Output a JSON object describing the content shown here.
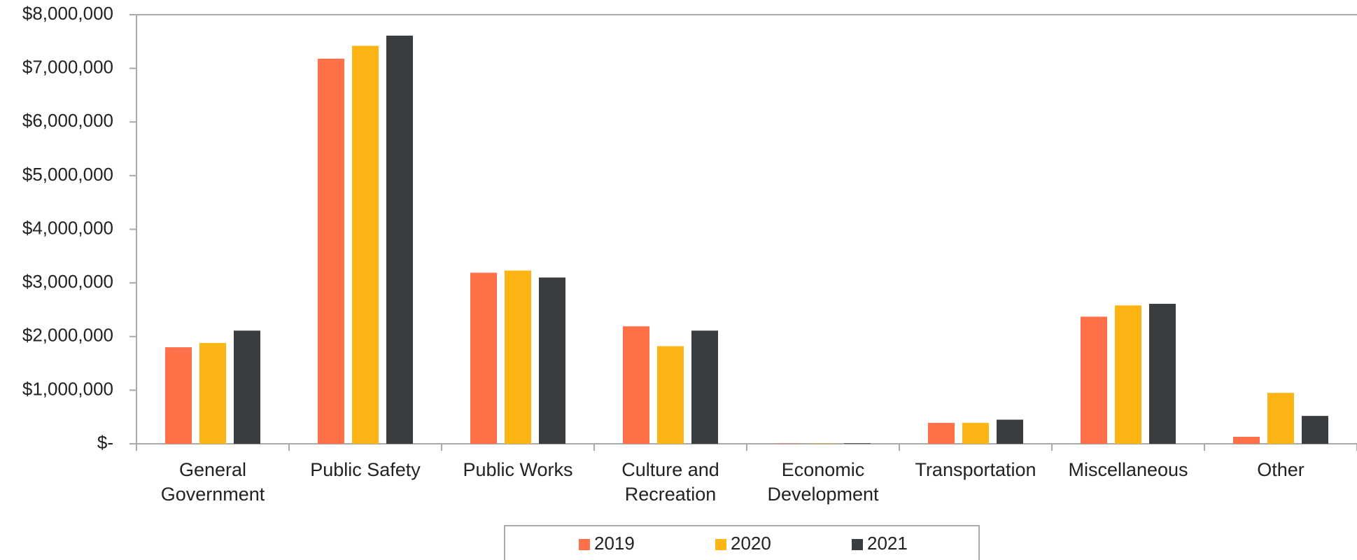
{
  "chart_data": {
    "type": "bar",
    "categories": [
      "General Government",
      "Public Safety",
      "Public Works",
      "Culture and Recreation",
      "Economic Development",
      "Transportation",
      "Miscellaneous",
      "Other"
    ],
    "series": [
      {
        "name": "2019",
        "color": "#ff7049",
        "values": [
          1800000,
          7180000,
          3190000,
          2190000,
          5000,
          390000,
          2370000,
          130000
        ]
      },
      {
        "name": "2020",
        "color": "#fdb515",
        "values": [
          1880000,
          7420000,
          3230000,
          1820000,
          5000,
          390000,
          2580000,
          950000
        ]
      },
      {
        "name": "2021",
        "color": "#3a3d40",
        "values": [
          2110000,
          7610000,
          3100000,
          2110000,
          10000,
          450000,
          2610000,
          520000
        ]
      }
    ],
    "ylim": [
      0,
      8000000
    ],
    "yticks": [
      {
        "value": 0,
        "label": "$-"
      },
      {
        "value": 1000000,
        "label": "$1,000,000"
      },
      {
        "value": 2000000,
        "label": "$2,000,000"
      },
      {
        "value": 3000000,
        "label": "$3,000,000"
      },
      {
        "value": 4000000,
        "label": "$4,000,000"
      },
      {
        "value": 5000000,
        "label": "$5,000,000"
      },
      {
        "value": 6000000,
        "label": "$6,000,000"
      },
      {
        "value": 7000000,
        "label": "$7,000,000"
      },
      {
        "value": 8000000,
        "label": "$8,000,000"
      }
    ],
    "grid": false,
    "legend": "bottom"
  }
}
